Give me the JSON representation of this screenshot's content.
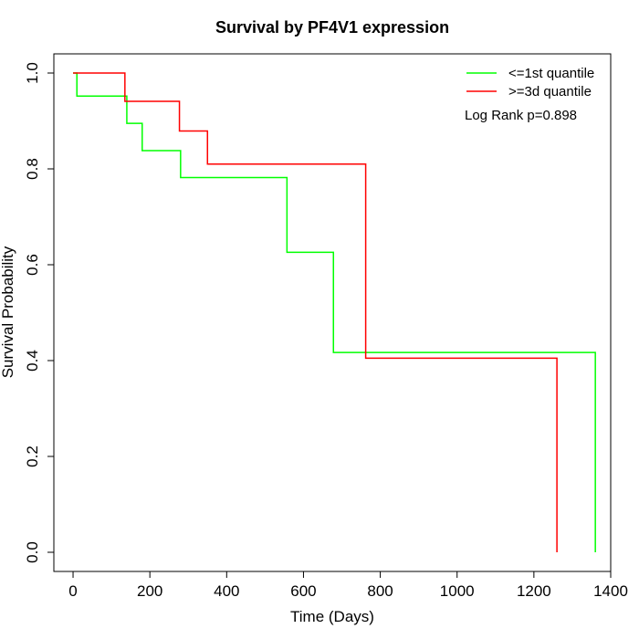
{
  "chart_data": {
    "type": "line",
    "title": "Survival by PF4V1 expression",
    "xlabel": "Time (Days)",
    "ylabel": "Survival Probability",
    "xlim": [
      -50,
      1400
    ],
    "ylim": [
      -0.04,
      1.04
    ],
    "x_ticks": [
      0,
      200,
      400,
      600,
      800,
      1000,
      1200,
      1400
    ],
    "y_ticks": [
      0.0,
      0.2,
      0.4,
      0.6,
      0.8,
      1.0
    ],
    "x_tick_labels": [
      "0",
      "200",
      "400",
      "600",
      "800",
      "1000",
      "1200",
      "1400"
    ],
    "y_tick_labels": [
      "0.0",
      "0.2",
      "0.4",
      "0.6",
      "0.8",
      "1.0"
    ],
    "grid": false,
    "legend_position": "top-right",
    "annotation": "Log Rank p=0.898",
    "series": [
      {
        "name": "<=1st quantile",
        "color": "#00ff00",
        "step": true,
        "points": [
          [
            0,
            1.0
          ],
          [
            10,
            0.952
          ],
          [
            140,
            0.895
          ],
          [
            180,
            0.838
          ],
          [
            280,
            0.782
          ],
          [
            557,
            0.626
          ],
          [
            678,
            0.417
          ],
          [
            1360,
            0.0
          ]
        ]
      },
      {
        "name": ">=3d quantile",
        "color": "#ff0000",
        "step": true,
        "points": [
          [
            0,
            1.0
          ],
          [
            135,
            0.941
          ],
          [
            277,
            0.879
          ],
          [
            350,
            0.81
          ],
          [
            762,
            0.405
          ],
          [
            1260,
            0.0
          ]
        ]
      }
    ]
  }
}
